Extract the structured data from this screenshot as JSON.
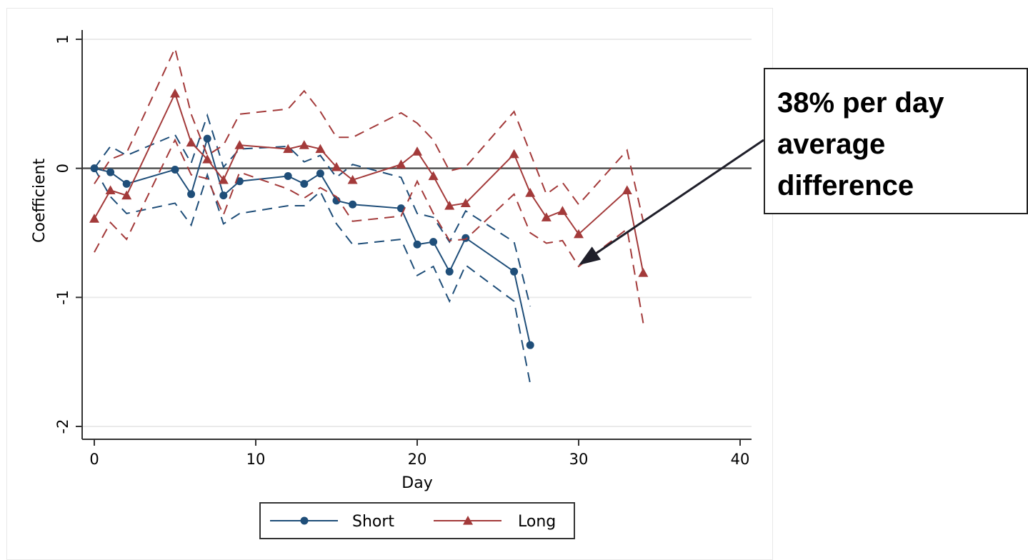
{
  "chart_data": {
    "type": "line",
    "xlabel": "Day",
    "ylabel": "Coefficient",
    "xlim": [
      0,
      40
    ],
    "ylim": [
      -2,
      1
    ],
    "xticks": [
      0,
      10,
      20,
      30,
      40
    ],
    "yticks": [
      -2,
      -1,
      0,
      1
    ],
    "grid": "horizontal",
    "reference_line": 0,
    "legend_position": "bottom",
    "series": [
      {
        "name": "Short",
        "color": "#1f4e79",
        "marker": "circle",
        "x": [
          0,
          1,
          2,
          5,
          6,
          7,
          8,
          9,
          12,
          13,
          14,
          15,
          16,
          19,
          20,
          21,
          22,
          23,
          26,
          27
        ],
        "values": [
          0.0,
          -0.03,
          -0.12,
          -0.01,
          -0.2,
          0.23,
          -0.21,
          -0.1,
          -0.06,
          -0.12,
          -0.04,
          -0.25,
          -0.28,
          -0.31,
          -0.59,
          -0.57,
          -0.8,
          -0.54,
          -0.8,
          -1.37
        ],
        "lower": [
          0.0,
          -0.22,
          -0.35,
          -0.27,
          -0.44,
          -0.05,
          -0.43,
          -0.35,
          -0.29,
          -0.29,
          -0.18,
          -0.43,
          -0.59,
          -0.55,
          -0.83,
          -0.76,
          -1.03,
          -0.75,
          -1.03,
          -1.67
        ],
        "upper": [
          0.0,
          0.17,
          0.1,
          0.26,
          0.04,
          0.41,
          0.01,
          0.15,
          0.17,
          0.05,
          0.1,
          -0.07,
          0.03,
          -0.07,
          -0.35,
          -0.38,
          -0.57,
          -0.33,
          -0.57,
          -1.07
        ]
      },
      {
        "name": "Long",
        "color": "#a33a3a",
        "marker": "triangle",
        "x": [
          0,
          1,
          2,
          5,
          6,
          7,
          8,
          9,
          12,
          13,
          14,
          15,
          16,
          19,
          20,
          21,
          22,
          23,
          26,
          27,
          28,
          29,
          30,
          33,
          34
        ],
        "values": [
          -0.39,
          -0.17,
          -0.21,
          0.58,
          0.2,
          0.07,
          -0.09,
          0.18,
          0.15,
          0.18,
          0.15,
          0.01,
          -0.09,
          0.03,
          0.13,
          -0.06,
          -0.29,
          -0.27,
          0.11,
          -0.19,
          -0.38,
          -0.33,
          -0.51,
          -0.17,
          -0.81
        ],
        "lower": [
          -0.65,
          -0.42,
          -0.55,
          0.22,
          -0.05,
          -0.08,
          -0.36,
          -0.03,
          -0.16,
          -0.23,
          -0.15,
          -0.22,
          -0.41,
          -0.37,
          -0.1,
          -0.35,
          -0.56,
          -0.55,
          -0.2,
          -0.5,
          -0.58,
          -0.56,
          -0.76,
          -0.47,
          -1.2
        ],
        "upper": [
          -0.12,
          0.07,
          0.12,
          0.93,
          0.42,
          0.1,
          0.18,
          0.42,
          0.46,
          0.6,
          0.44,
          0.24,
          0.24,
          0.43,
          0.35,
          0.22,
          -0.02,
          0.01,
          0.44,
          0.12,
          -0.2,
          -0.11,
          -0.28,
          0.14,
          -0.41
        ]
      }
    ]
  },
  "annotation": {
    "text": "38% per day\naverage\ndifference",
    "arrow_target": {
      "x": 30,
      "y": -0.75
    }
  }
}
